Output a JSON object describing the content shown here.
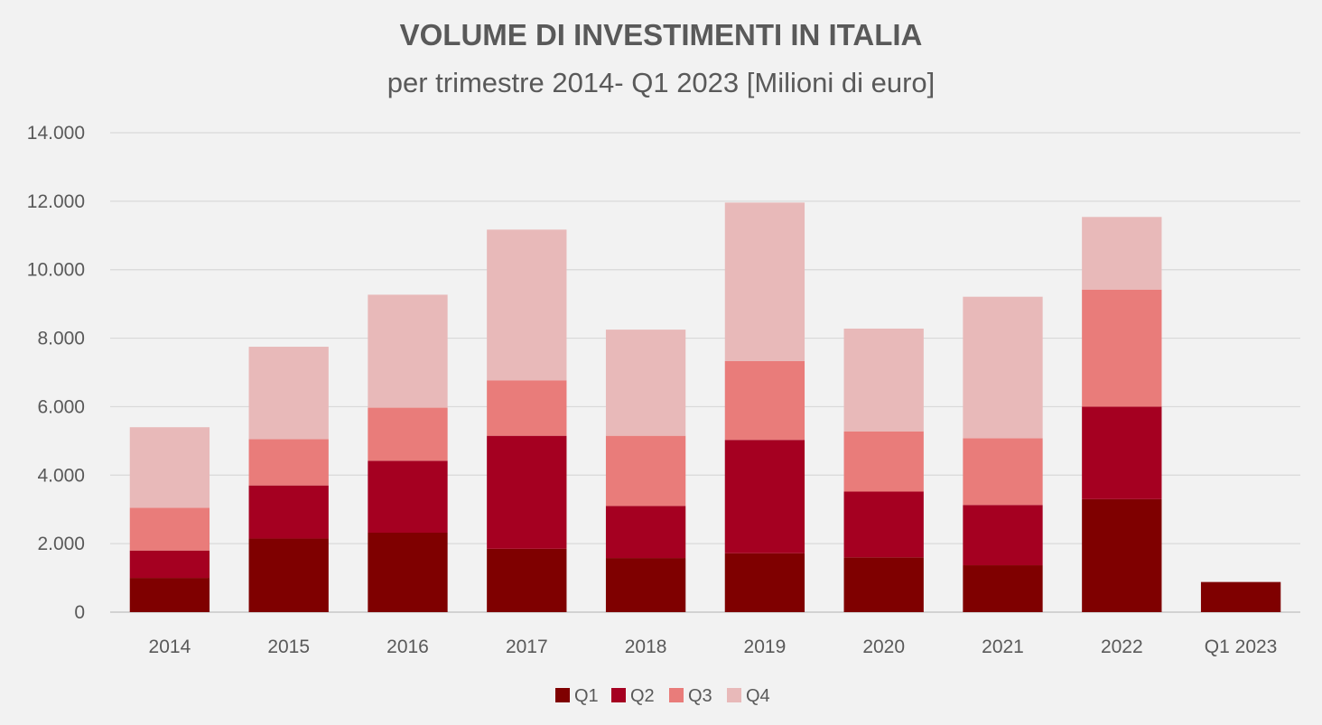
{
  "chart_data": {
    "type": "bar",
    "stacked": true,
    "title": "VOLUME DI INVESTIMENTI IN ITALIA",
    "subtitle": "per trimestre 2014- Q1 2023 [Milioni di euro]",
    "xlabel": "",
    "ylabel": "",
    "ylim": [
      0,
      14000
    ],
    "yticks": [
      0,
      2000,
      4000,
      6000,
      8000,
      10000,
      12000,
      14000
    ],
    "ytick_labels": [
      "0",
      "2.000",
      "4.000",
      "6.000",
      "8.000",
      "10.000",
      "12.000",
      "14.000"
    ],
    "grid": true,
    "legend_position": "bottom",
    "categories": [
      "2014",
      "2015",
      "2016",
      "2017",
      "2018",
      "2019",
      "2020",
      "2021",
      "2022",
      "Q1 2023"
    ],
    "series": [
      {
        "name": "Q1",
        "color": "#7f0000",
        "values": [
          1000,
          2150,
          2320,
          1850,
          1580,
          1720,
          1600,
          1370,
          3300,
          880
        ]
      },
      {
        "name": "Q2",
        "color": "#a50021",
        "values": [
          800,
          1550,
          2100,
          3300,
          1520,
          3310,
          1920,
          1760,
          2700,
          0
        ]
      },
      {
        "name": "Q3",
        "color": "#e97c7a",
        "values": [
          1250,
          1350,
          1550,
          1620,
          2050,
          2300,
          1760,
          1950,
          3420,
          0
        ]
      },
      {
        "name": "Q4",
        "color": "#e8b9b9",
        "values": [
          2350,
          2700,
          3300,
          4400,
          3100,
          4630,
          3000,
          4130,
          2120,
          0
        ]
      }
    ]
  }
}
